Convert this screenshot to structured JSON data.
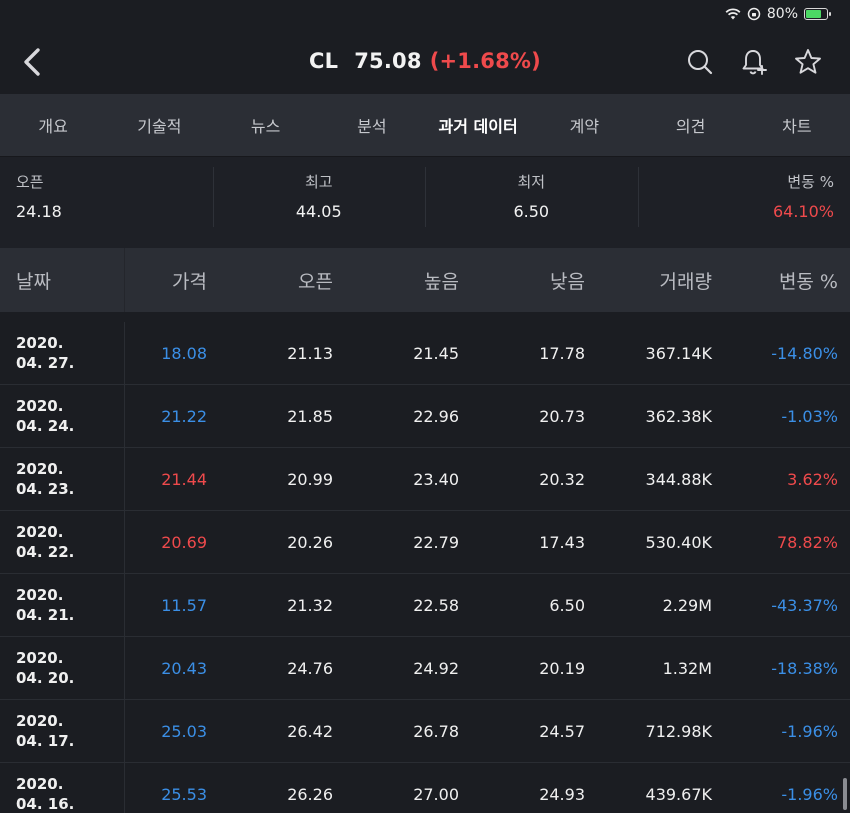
{
  "status": {
    "battery": "80%",
    "battery_level": 0.8
  },
  "header": {
    "symbol": "CL",
    "price": "75.08",
    "change": "(+1.68%)"
  },
  "tabs": [
    "개요",
    "기술적",
    "뉴스",
    "분석",
    "과거 데이터",
    "계약",
    "의견",
    "차트"
  ],
  "active_tab": 4,
  "summary": {
    "open": {
      "label": "오픈",
      "value": "24.18"
    },
    "high": {
      "label": "최고",
      "value": "44.05"
    },
    "low": {
      "label": "최저",
      "value": "6.50"
    },
    "change": {
      "label": "변동 %",
      "value": "64.10%"
    }
  },
  "table": {
    "columns": [
      "날짜",
      "가격",
      "오픈",
      "높음",
      "낮음",
      "거래량",
      "변동 %"
    ],
    "rows": [
      {
        "date1": "2020.",
        "date2": "04. 27.",
        "price": "18.08",
        "open": "21.13",
        "high": "21.45",
        "low": "17.78",
        "volume": "367.14K",
        "change": "-14.80%",
        "trend": "down"
      },
      {
        "date1": "2020.",
        "date2": "04. 24.",
        "price": "21.22",
        "open": "21.85",
        "high": "22.96",
        "low": "20.73",
        "volume": "362.38K",
        "change": "-1.03%",
        "trend": "down"
      },
      {
        "date1": "2020.",
        "date2": "04. 23.",
        "price": "21.44",
        "open": "20.99",
        "high": "23.40",
        "low": "20.32",
        "volume": "344.88K",
        "change": "3.62%",
        "trend": "up"
      },
      {
        "date1": "2020.",
        "date2": "04. 22.",
        "price": "20.69",
        "open": "20.26",
        "high": "22.79",
        "low": "17.43",
        "volume": "530.40K",
        "change": "78.82%",
        "trend": "up"
      },
      {
        "date1": "2020.",
        "date2": "04. 21.",
        "price": "11.57",
        "open": "21.32",
        "high": "22.58",
        "low": "6.50",
        "volume": "2.29M",
        "change": "-43.37%",
        "trend": "down"
      },
      {
        "date1": "2020.",
        "date2": "04. 20.",
        "price": "20.43",
        "open": "24.76",
        "high": "24.92",
        "low": "20.19",
        "volume": "1.32M",
        "change": "-18.38%",
        "trend": "down"
      },
      {
        "date1": "2020.",
        "date2": "04. 17.",
        "price": "25.03",
        "open": "26.42",
        "high": "26.78",
        "low": "24.57",
        "volume": "712.98K",
        "change": "-1.96%",
        "trend": "down"
      },
      {
        "date1": "2020.",
        "date2": "04. 16.",
        "price": "25.53",
        "open": "26.26",
        "high": "27.00",
        "low": "24.93",
        "volume": "439.67K",
        "change": "-1.96%",
        "trend": "down"
      }
    ]
  },
  "colors": {
    "up": "#ef4a4c",
    "down": "#3b8fe6"
  }
}
